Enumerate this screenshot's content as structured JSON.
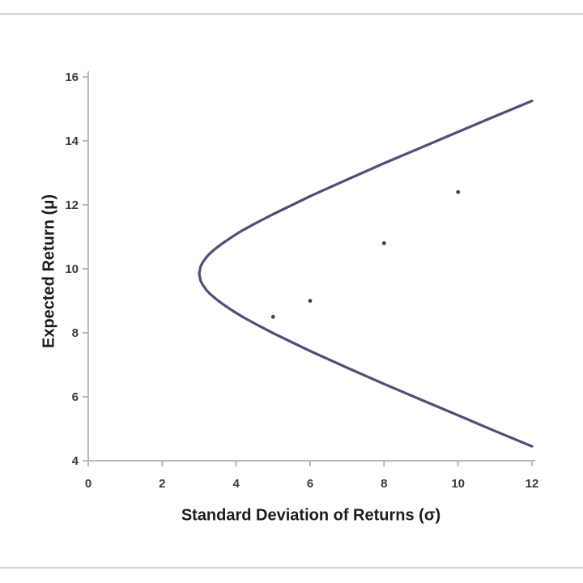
{
  "chart_data": {
    "type": "line",
    "title": "",
    "xlabel": "Standard Deviation of Returns (σ)",
    "ylabel": "Expected Return (μ)",
    "xlim": [
      0,
      12
    ],
    "ylim": [
      4,
      16
    ],
    "x_ticks": [
      0,
      2,
      4,
      6,
      8,
      10,
      12
    ],
    "y_ticks": [
      4,
      6,
      8,
      10,
      12,
      14,
      16
    ],
    "grid": false,
    "legend": false,
    "axis_color": "#b8b8b8",
    "tick_label_color": "#3b3b3b",
    "series": [
      {
        "name": "efficient-frontier-curve",
        "kind": "line",
        "color": "#4f4f78",
        "stroke_width": 3.2,
        "points": [
          [
            12,
            4.45
          ],
          [
            11,
            4.93
          ],
          [
            10,
            5.42
          ],
          [
            9,
            5.91
          ],
          [
            8,
            6.4
          ],
          [
            7,
            6.91
          ],
          [
            6.5,
            7.17
          ],
          [
            6,
            7.43
          ],
          [
            5.5,
            7.71
          ],
          [
            5,
            7.99
          ],
          [
            4.5,
            8.29
          ],
          [
            4.2,
            8.48
          ],
          [
            4,
            8.62
          ],
          [
            3.8,
            8.77
          ],
          [
            3.6,
            8.93
          ],
          [
            3.45,
            9.06
          ],
          [
            3.3,
            9.21
          ],
          [
            3.2,
            9.33
          ],
          [
            3.1,
            9.49
          ],
          [
            3.04,
            9.62
          ],
          [
            3.0,
            9.85
          ],
          [
            3.04,
            10.08
          ],
          [
            3.1,
            10.21
          ],
          [
            3.2,
            10.37
          ],
          [
            3.3,
            10.49
          ],
          [
            3.45,
            10.64
          ],
          [
            3.6,
            10.77
          ],
          [
            3.8,
            10.93
          ],
          [
            4,
            11.08
          ],
          [
            4.2,
            11.22
          ],
          [
            4.5,
            11.41
          ],
          [
            5,
            11.71
          ],
          [
            5.5,
            11.99
          ],
          [
            6,
            12.27
          ],
          [
            6.5,
            12.53
          ],
          [
            7,
            12.79
          ],
          [
            8,
            13.3
          ],
          [
            9,
            13.79
          ],
          [
            10,
            14.28
          ],
          [
            11,
            14.77
          ],
          [
            12,
            15.25
          ]
        ]
      },
      {
        "name": "individual-asset-points",
        "kind": "scatter",
        "color": "#3f3f52",
        "marker_radius": 2.4,
        "points": [
          [
            5,
            8.5
          ],
          [
            6,
            9.0
          ],
          [
            8,
            10.8
          ],
          [
            10,
            12.4
          ]
        ]
      }
    ]
  }
}
